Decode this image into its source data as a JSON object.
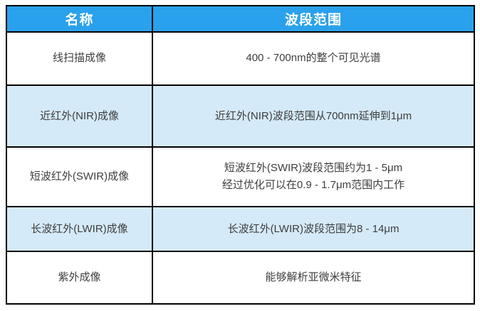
{
  "table": {
    "header": {
      "name_col": "名称",
      "range_col": "波段范围"
    },
    "rows": [
      {
        "name": "线扫描成像",
        "range": "400 - 700nm的整个可见光谱"
      },
      {
        "name": "近红外(NIR)成像",
        "range": "近红外(NIR)波段范围从700nm延伸到1μm"
      },
      {
        "name": "短波红外(SWIR)成像",
        "range": "短波红外(SWIR)波段范围约为1 - 5μm",
        "range_line2": "经过优化可以在0.9 - 1.7μm范围内工作"
      },
      {
        "name": "长波红外(LWIR)成像",
        "range": "长波红外(LWIR)波段范围为8 - 14μm"
      },
      {
        "name": "紫外成像",
        "range": "能够解析亚微米特征"
      }
    ],
    "colors": {
      "header_bg": "#2aa1ec",
      "header_text": "#ffffff",
      "alt_row_bg": "#d5eaf8",
      "row_bg": "#ffffff",
      "body_text": "#3e3e3e",
      "border": "#000000"
    }
  },
  "chart_data": {
    "type": "table",
    "title": "",
    "columns": [
      "名称",
      "波段范围"
    ],
    "rows": [
      [
        "线扫描成像",
        "400 - 700nm的整个可见光谱"
      ],
      [
        "近红外(NIR)成像",
        "近红外(NIR)波段范围从700nm延伸到1μm"
      ],
      [
        "短波红外(SWIR)成像",
        "短波红外(SWIR)波段范围约为1 - 5μm 经过优化可以在0.9 - 1.7μm范围内工作"
      ],
      [
        "长波红外(LWIR)成像",
        "长波红外(LWIR)波段范围为8 - 14μm"
      ],
      [
        "紫外成像",
        "能够解析亚微米特征"
      ]
    ],
    "layout_hints": {
      "header_style": "blue background, white bold text",
      "row_striping": "white / light blue alternating starting with white",
      "borders": "black grid lines, all cells center-aligned"
    }
  }
}
